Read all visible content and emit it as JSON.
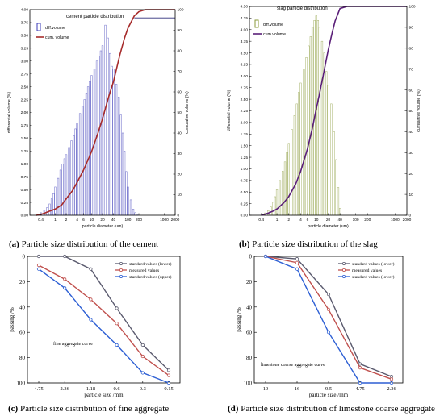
{
  "chart_data": [
    {
      "id": "a",
      "type": "bar",
      "title": "cement particle distribution",
      "caption_letter": "(a)",
      "caption_text": "Particle size distribution of the cement",
      "xlabel": "particle diameter (um)",
      "ylabel": "differential volume (%)",
      "y2label": "cumulative volume (%)",
      "x_scale": "log",
      "xlim": [
        0.2,
        2000
      ],
      "ylim": [
        0,
        4.0
      ],
      "y2lim": [
        0,
        100
      ],
      "x_ticks": [
        "0.4",
        "1",
        "2",
        "4",
        "6",
        "10",
        "20",
        "40",
        "100",
        "200",
        "1000",
        "2000"
      ],
      "y_ticks": [
        "0.00",
        "0.25",
        "0.50",
        "0.75",
        "1.00",
        "1.25",
        "1.50",
        "1.75",
        "2.00",
        "2.25",
        "2.50",
        "2.75",
        "3.00",
        "3.25",
        "3.50",
        "3.75",
        "4.00"
      ],
      "y2_ticks": [
        "0",
        "10",
        "20",
        "30",
        "40",
        "50",
        "60",
        "70",
        "80",
        "90",
        "100"
      ],
      "legend_position": "top-left",
      "series": [
        {
          "name": "diff.volume",
          "kind": "bar",
          "color": "#3b3bb8",
          "x": [
            0.4,
            0.5,
            0.6,
            0.7,
            0.8,
            0.9,
            1.0,
            1.2,
            1.4,
            1.6,
            1.8,
            2.0,
            2.4,
            2.8,
            3.2,
            3.6,
            4.0,
            4.8,
            5.6,
            6.4,
            7.2,
            8.0,
            9.0,
            10,
            12,
            14,
            16,
            18,
            20,
            24,
            28,
            32,
            36,
            40,
            48,
            56,
            64,
            72,
            80,
            90,
            100,
            120,
            140,
            160,
            180
          ],
          "values": [
            0.05,
            0.1,
            0.15,
            0.22,
            0.32,
            0.42,
            0.55,
            0.72,
            0.88,
            1.0,
            1.1,
            1.18,
            1.32,
            1.45,
            1.55,
            1.68,
            1.8,
            1.98,
            2.12,
            2.25,
            2.38,
            2.5,
            2.6,
            2.72,
            2.85,
            3.0,
            3.1,
            3.2,
            3.3,
            3.7,
            3.45,
            3.15,
            2.9,
            2.85,
            2.55,
            2.3,
            1.95,
            1.6,
            1.25,
            0.85,
            0.55,
            0.3,
            0.12,
            0.05,
            0.02
          ]
        },
        {
          "name": "cum. volume",
          "kind": "line",
          "color": "#a62b2b",
          "x": [
            0.3,
            0.4,
            0.5,
            0.7,
            1,
            1.5,
            2,
            3,
            4,
            6,
            8,
            10,
            15,
            20,
            30,
            40,
            60,
            80,
            100,
            150,
            200,
            300,
            1000,
            2000
          ],
          "values": [
            0,
            0.4,
            1,
            2,
            3,
            5,
            8,
            12,
            16,
            22,
            27,
            31,
            40,
            47,
            58,
            65,
            78,
            86,
            91,
            97,
            99,
            100,
            100,
            100
          ]
        },
        {
          "name": "",
          "kind": "flat",
          "color": "#2e2e7a",
          "x": [
            150,
            2000
          ],
          "values": [
            96,
            96
          ]
        }
      ]
    },
    {
      "id": "b",
      "type": "bar",
      "title": "slag particle distribution",
      "caption_letter": "(b)",
      "caption_text": "Particle size distribution of the slag",
      "xlabel": "particle diameter (um)",
      "ylabel": "differential volume (%)",
      "y2label": "cumulative volume (%)",
      "x_scale": "log",
      "xlim": [
        0.2,
        2000
      ],
      "ylim": [
        0,
        4.5
      ],
      "y2lim": [
        0,
        100
      ],
      "x_ticks": [
        "0.4",
        "1",
        "2",
        "4",
        "6",
        "10",
        "20",
        "40",
        "100",
        "200",
        "1000",
        "2000"
      ],
      "y_ticks": [
        "0.00",
        "0.25",
        "0.50",
        "0.75",
        "1.00",
        "1.25",
        "1.50",
        "1.75",
        "2.00",
        "2.25",
        "2.50",
        "2.75",
        "3.00",
        "3.25",
        "3.50",
        "3.75",
        "4.00",
        "4.25",
        "4.50"
      ],
      "y2_ticks": [
        "0",
        "10",
        "20",
        "30",
        "40",
        "50",
        "60",
        "70",
        "80",
        "90",
        "100"
      ],
      "legend_position": "top-left",
      "series": [
        {
          "name": "diff.volume",
          "kind": "bar",
          "color": "#8a9a38",
          "x": [
            0.5,
            0.6,
            0.7,
            0.8,
            0.9,
            1.0,
            1.2,
            1.4,
            1.6,
            1.8,
            2.0,
            2.4,
            2.8,
            3.2,
            3.6,
            4.0,
            4.8,
            5.6,
            6.4,
            7.2,
            8.0,
            9.0,
            10,
            11,
            12,
            14,
            16,
            18,
            20,
            24,
            28,
            32,
            36,
            40
          ],
          "values": [
            0.05,
            0.1,
            0.18,
            0.28,
            0.4,
            0.55,
            0.75,
            0.95,
            1.15,
            1.35,
            1.55,
            1.85,
            2.15,
            2.4,
            2.65,
            2.85,
            3.15,
            3.4,
            3.65,
            3.85,
            4.05,
            4.2,
            4.3,
            4.2,
            4.05,
            3.75,
            3.5,
            3.1,
            2.8,
            2.4,
            1.8,
            1.2,
            0.6,
            0.15
          ]
        },
        {
          "name": "cum.volume",
          "kind": "line",
          "color": "#5a1f78",
          "x": [
            0.4,
            0.6,
            0.8,
            1,
            1.5,
            2,
            3,
            4,
            6,
            8,
            10,
            12,
            15,
            20,
            25,
            30,
            40,
            60,
            100,
            300,
            1000,
            2000
          ],
          "values": [
            0,
            1,
            2,
            3,
            6,
            9,
            15,
            21,
            32,
            42,
            51,
            58,
            67,
            79,
            87,
            93,
            99,
            100,
            100,
            100,
            100,
            100
          ]
        }
      ]
    },
    {
      "id": "c",
      "type": "line",
      "title": "",
      "caption_letter": "(c)",
      "caption_text": "Particle size distribution of fine aggregate",
      "xlabel": "particle size /mm",
      "ylabel": "passing /%",
      "categories": [
        "4.75",
        "2.36",
        "1.18",
        "0.6",
        "0.3",
        "0.15"
      ],
      "ylim": [
        0,
        100
      ],
      "y_inverted": true,
      "y_ticks": [
        "0",
        "20",
        "40",
        "60",
        "80",
        "100"
      ],
      "annotation": "fine aggregate curve",
      "legend_position": "top-right",
      "series": [
        {
          "name": "standard values (lower)",
          "color": "#5a5a6e",
          "values": [
            0,
            0,
            10,
            41,
            70,
            90
          ]
        },
        {
          "name": "measured values",
          "color": "#c0504d",
          "values": [
            7,
            18,
            34,
            53,
            79,
            94
          ]
        },
        {
          "name": "standard values (upper)",
          "color": "#2d5fd4",
          "values": [
            10,
            25,
            50,
            70,
            92,
            100
          ]
        }
      ]
    },
    {
      "id": "d",
      "type": "line",
      "title": "",
      "caption_letter": "(d)",
      "caption_text": "Particle size distribution of limestone coarse aggregate",
      "xlabel": "particle size /mm",
      "ylabel": "passing /%",
      "categories": [
        "19",
        "16",
        "9.5",
        "4.75",
        "2.36"
      ],
      "ylim": [
        0,
        100
      ],
      "y_inverted": true,
      "y_ticks": [
        "0",
        "20",
        "40",
        "60",
        "80",
        "100"
      ],
      "annotation": "limestone coarse aggregate curve",
      "legend_position": "top-right",
      "series": [
        {
          "name": "standard values (lower)",
          "color": "#5a5a6e",
          "values": [
            0,
            2,
            30,
            85,
            95
          ]
        },
        {
          "name": "measured values",
          "color": "#c0504d",
          "values": [
            0,
            5,
            42,
            88,
            97
          ]
        },
        {
          "name": "standard values (lower)",
          "color": "#2d5fd4",
          "values": [
            0,
            10,
            60,
            100,
            100
          ]
        }
      ]
    }
  ]
}
